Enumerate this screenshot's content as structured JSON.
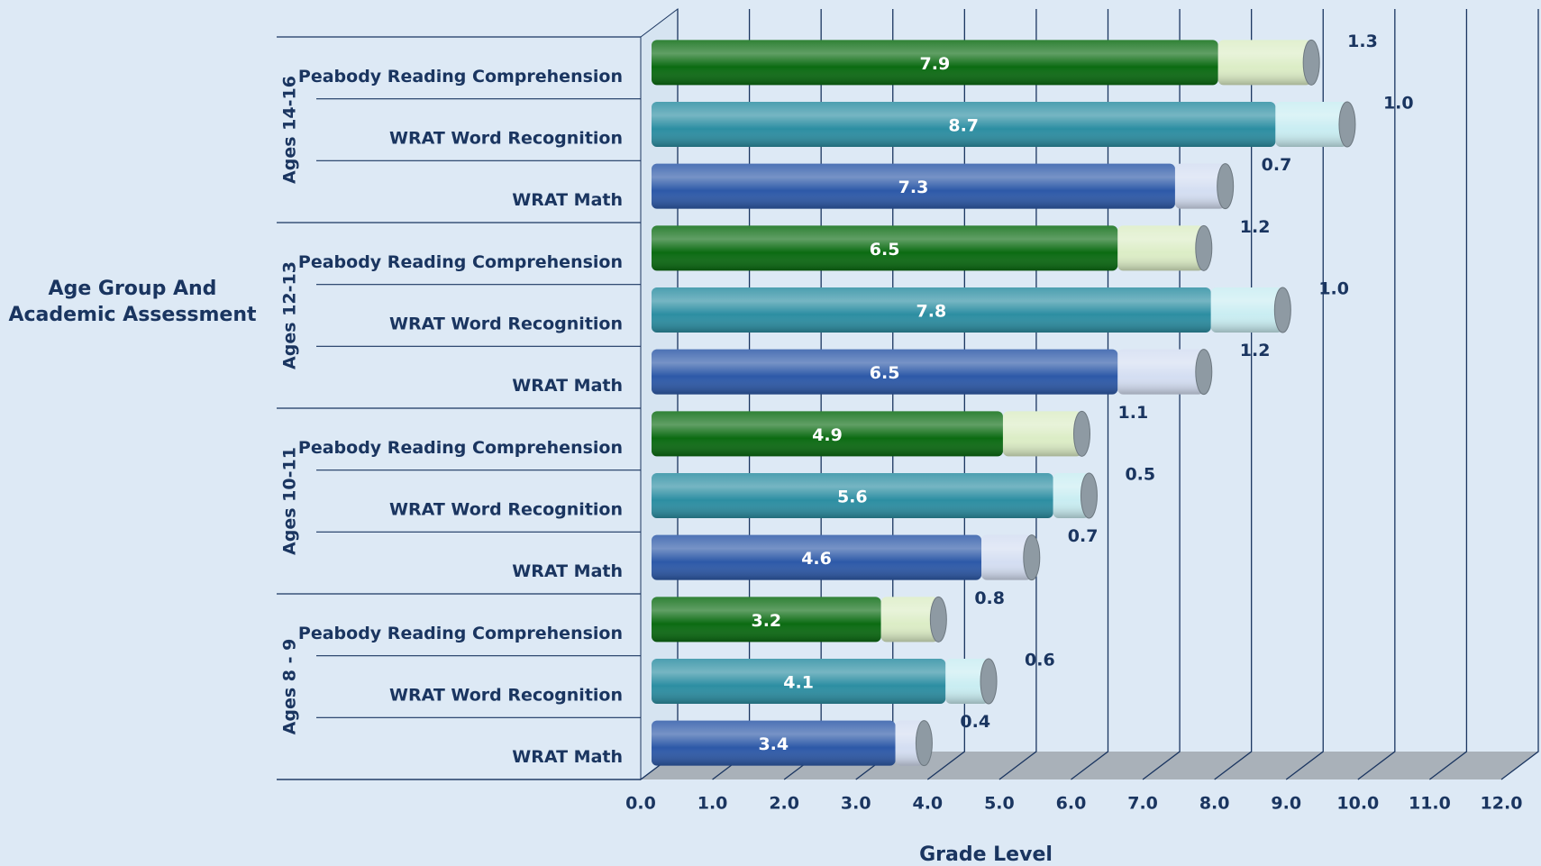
{
  "chart_data": {
    "type": "bar",
    "orientation": "horizontal",
    "stacked": true,
    "xlabel": "Grade Level",
    "ylabel": [
      "Age Group And",
      "Academic  Assessment"
    ],
    "groups": [
      "Ages 14-16",
      "Ages 12-13",
      "Ages 10-11",
      "Ages 8 - 9"
    ],
    "categories": [
      "Peabody Reading Comprehension",
      "WRAT Word Recognition",
      "WRAT Math",
      "Peabody Reading Comprehension",
      "WRAT Word Recognition",
      "WRAT Math",
      "Peabody Reading Comprehension",
      "WRAT Word Recognition",
      "WRAT Math",
      "Peabody Reading Comprehension",
      "WRAT Word Recognition",
      "WRAT Math"
    ],
    "series": [
      {
        "colors": [
          "#0b6b12",
          "#2c8ea2",
          "#2d59a8"
        ],
        "values": [
          7.9,
          8.7,
          7.3,
          6.5,
          7.8,
          6.5,
          4.9,
          5.6,
          4.6,
          3.2,
          4.1,
          3.4
        ]
      },
      {
        "colors": [
          "#dcedc6",
          "#c9edf2",
          "#d4def2"
        ],
        "values": [
          1.3,
          1.0,
          0.7,
          1.2,
          1.0,
          1.2,
          1.1,
          0.5,
          0.7,
          0.8,
          0.6,
          0.4
        ],
        "value_labels": [
          "1.3",
          "1.0",
          "0.7",
          "1.2",
          "1.0",
          "1.2",
          "1.1",
          "0.5",
          "0.7",
          "0.8",
          "0.6",
          "0.4"
        ]
      }
    ],
    "xlim": [
      0,
      12
    ],
    "xticks": [
      {
        "value": 0,
        "label": "0.0"
      },
      {
        "value": 1,
        "label": "1.0"
      },
      {
        "value": 2,
        "label": "2.0"
      },
      {
        "value": 3,
        "label": "3.0"
      },
      {
        "value": 4,
        "label": "4.0"
      },
      {
        "value": 5,
        "label": "5.0"
      },
      {
        "value": 6,
        "label": "6.0"
      },
      {
        "value": 7,
        "label": "7.0"
      },
      {
        "value": 8,
        "label": "8.0"
      },
      {
        "value": 9,
        "label": "9.0"
      },
      {
        "value": 10,
        "label": "10.0"
      },
      {
        "value": 11,
        "label": "11.0"
      },
      {
        "value": 12,
        "label": "12.0"
      }
    ],
    "grid": true
  }
}
